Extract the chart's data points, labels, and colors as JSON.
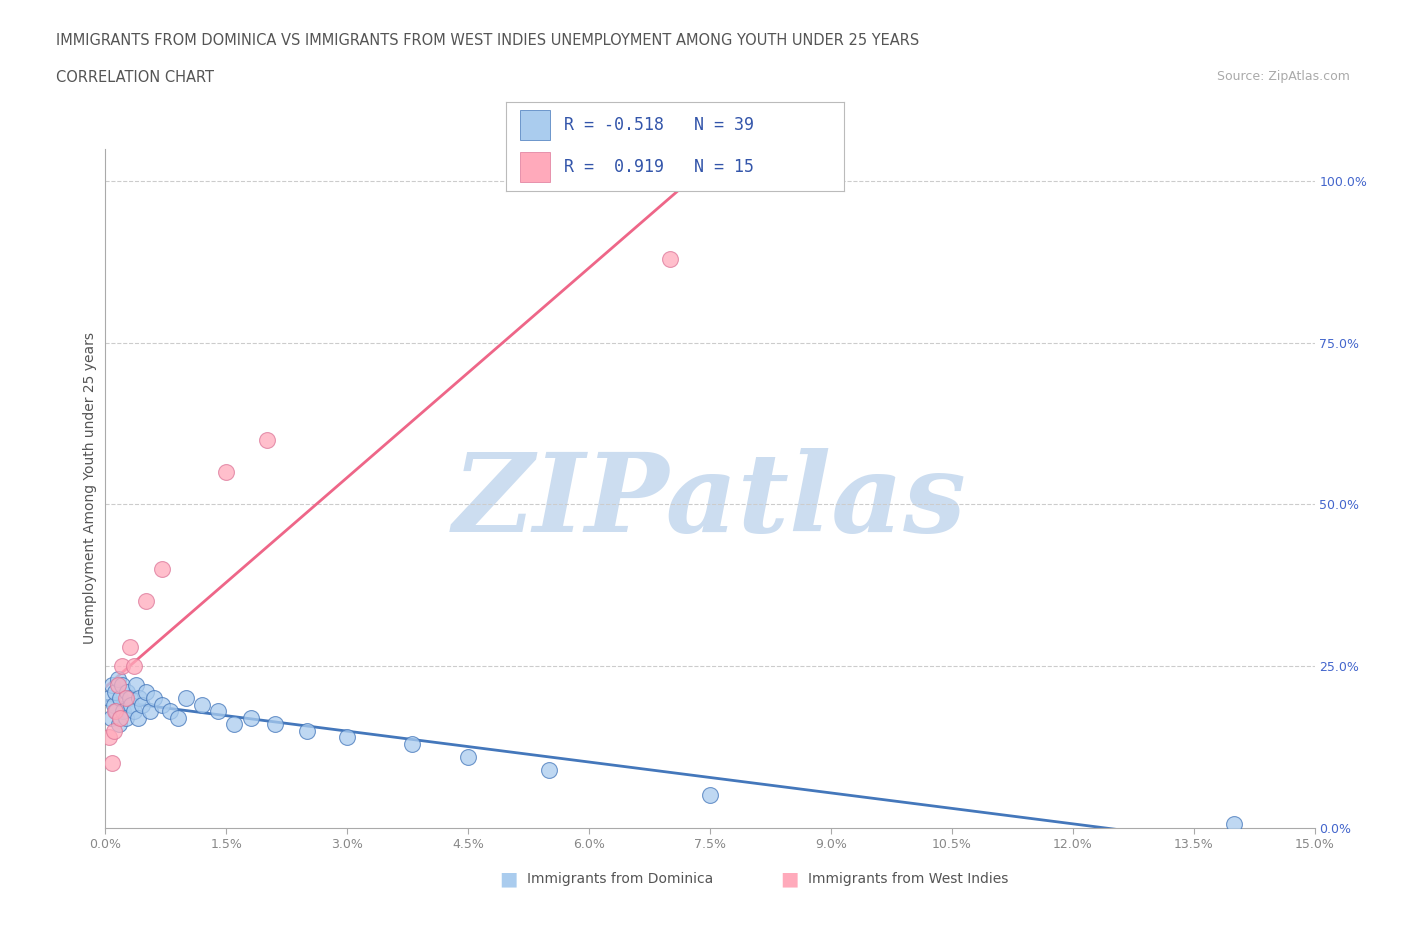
{
  "title_line1": "IMMIGRANTS FROM DOMINICA VS IMMIGRANTS FROM WEST INDIES UNEMPLOYMENT AMONG YOUTH UNDER 25 YEARS",
  "title_line2": "CORRELATION CHART",
  "source_text": "Source: ZipAtlas.com",
  "xlabel_dominica": "Immigrants from Dominica",
  "xlabel_west_indies": "Immigrants from West Indies",
  "ylabel": "Unemployment Among Youth under 25 years",
  "x_min": 0.0,
  "x_max": 15.0,
  "y_min": 0.0,
  "y_max": 100.0,
  "x_ticks": [
    0.0,
    1.5,
    3.0,
    4.5,
    6.0,
    7.5,
    9.0,
    10.5,
    12.0,
    13.5,
    15.0
  ],
  "y_ticks_right": [
    0.0,
    25.0,
    50.0,
    75.0,
    100.0
  ],
  "grid_color": "#cccccc",
  "background_color": "#ffffff",
  "watermark_text": "ZIPatlas",
  "watermark_color": "#ccddf0",
  "dominica_color": "#aaccee",
  "west_indies_color": "#ffaabb",
  "dominica_line_color": "#4477bb",
  "west_indies_line_color": "#ee6688",
  "legend_R_dominica": "-0.518",
  "legend_N_dominica": "39",
  "legend_R_west_indies": "0.919",
  "legend_N_west_indies": "15",
  "dominica_x": [
    0.05,
    0.07,
    0.08,
    0.1,
    0.12,
    0.13,
    0.15,
    0.17,
    0.18,
    0.2,
    0.22,
    0.25,
    0.27,
    0.3,
    0.32,
    0.35,
    0.38,
    0.4,
    0.42,
    0.45,
    0.5,
    0.55,
    0.6,
    0.7,
    0.8,
    0.9,
    1.0,
    1.2,
    1.4,
    1.6,
    1.8,
    2.1,
    2.5,
    3.0,
    3.8,
    4.5,
    5.5,
    7.5,
    14.0
  ],
  "dominica_y": [
    20,
    17,
    22,
    19,
    21,
    18,
    23,
    16,
    20,
    22,
    18,
    17,
    21,
    20,
    19,
    18,
    22,
    17,
    20,
    19,
    21,
    18,
    20,
    19,
    18,
    17,
    20,
    19,
    18,
    16,
    17,
    16,
    15,
    14,
    13,
    11,
    9,
    5,
    0.5
  ],
  "west_indies_x": [
    0.05,
    0.08,
    0.1,
    0.12,
    0.15,
    0.18,
    0.2,
    0.25,
    0.3,
    0.35,
    0.5,
    0.7,
    1.5,
    2.0,
    7.0
  ],
  "west_indies_y": [
    14,
    10,
    15,
    18,
    22,
    17,
    25,
    20,
    28,
    25,
    35,
    40,
    55,
    60,
    88
  ]
}
